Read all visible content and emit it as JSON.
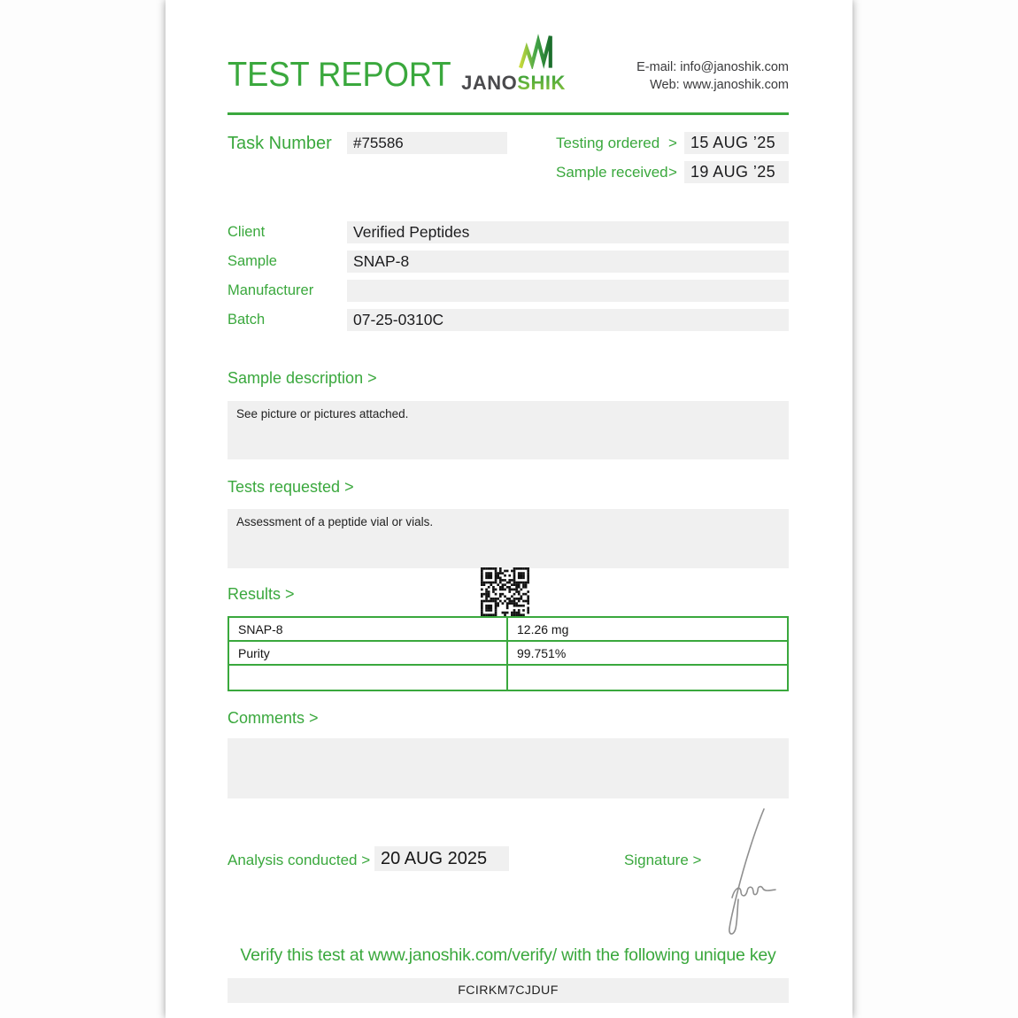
{
  "header": {
    "title": "TEST REPORT",
    "logo": {
      "jano": "JANO",
      "shik": "SHIK"
    },
    "contact": {
      "email_label": "E-mail:",
      "email_value": "info@janoshik.com",
      "web_label": "Web:",
      "web_value": "www.janoshik.com"
    }
  },
  "task": {
    "label": "Task Number",
    "value": "#75586",
    "arrow": ">",
    "testing_ordered_label": "Testing ordered",
    "testing_ordered_date": "15 AUG ’25",
    "sample_received_label": "Sample received",
    "sample_received_date": "19 AUG ’25"
  },
  "info": {
    "client_label": "Client",
    "client": "Verified Peptides",
    "sample_label": "Sample",
    "sample": "SNAP-8",
    "manufacturer_label": "Manufacturer",
    "manufacturer": "",
    "batch_label": "Batch",
    "batch": "07-25-0310C"
  },
  "sections": {
    "sample_description_label": "Sample description >",
    "sample_description_text": "See picture or pictures attached.",
    "tests_requested_label": "Tests requested >",
    "tests_requested_text": "Assessment of a peptide vial or vials.",
    "results_label": "Results >",
    "comments_label": "Comments >",
    "comments_text": ""
  },
  "results_table": {
    "rows": [
      {
        "name": "SNAP-8",
        "value": "12.26 mg"
      },
      {
        "name": "Purity",
        "value": "99.751%"
      },
      {
        "name": "",
        "value": ""
      }
    ]
  },
  "footer": {
    "analysis_label": "Analysis conducted >",
    "analysis_date": "20 AUG 2025",
    "signature_label": "Signature >",
    "verify_text": "Verify this test at www.janoshik.com/verify/ with the following unique key",
    "verify_key": "FCIRKM7CJDUF"
  },
  "colors": {
    "brand_green": "#3aa83d",
    "logo_gray": "#4a4a4d",
    "field_gray": "#f0f0f0",
    "text_dark": "#1c1c1e"
  }
}
